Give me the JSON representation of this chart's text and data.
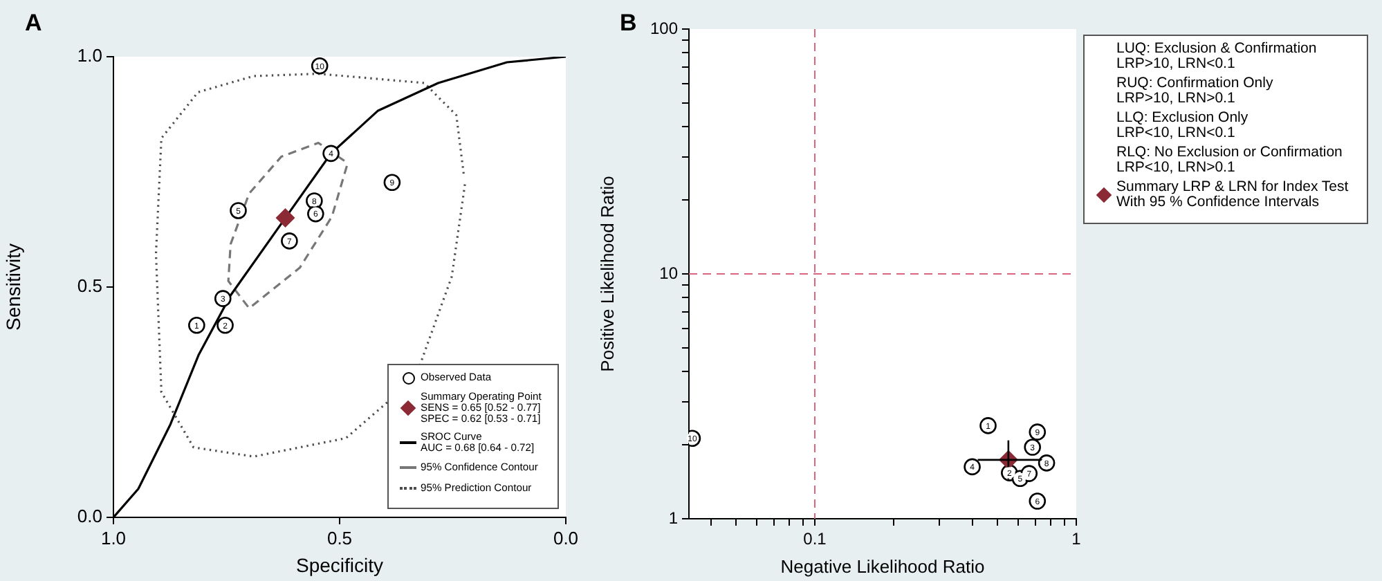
{
  "chart_data": [
    {
      "type": "scatter",
      "title": "A",
      "xlabel": "Specificity",
      "ylabel": "Sensitivity",
      "xlim": [
        1,
        0
      ],
      "ylim": [
        0,
        1
      ],
      "xticks": [
        {
          "value": 1,
          "label": "1.0"
        },
        {
          "value": 0.5,
          "label": "0.5"
        },
        {
          "value": 0,
          "label": "0.0"
        }
      ],
      "yticks": [
        {
          "value": 0,
          "label": "0.0"
        },
        {
          "value": 0.5,
          "label": "0.5"
        },
        {
          "value": 1,
          "label": "1.0"
        }
      ],
      "grid": false,
      "legend": "bottom right",
      "annotations": [
        {
          "text": "10",
          "x": 0.544,
          "y": 0.98
        },
        {
          "text": "4",
          "x": 0.519,
          "y": 0.79
        },
        {
          "text": "9",
          "x": 0.384,
          "y": 0.727
        },
        {
          "text": "5",
          "x": 0.724,
          "y": 0.666
        },
        {
          "text": "8",
          "x": 0.556,
          "y": 0.687
        },
        {
          "text": "6",
          "x": 0.553,
          "y": 0.659
        },
        {
          "text": "7",
          "x": 0.611,
          "y": 0.6
        },
        {
          "text": "3",
          "x": 0.758,
          "y": 0.475
        },
        {
          "text": "1",
          "x": 0.816,
          "y": 0.417
        },
        {
          "text": "2",
          "x": 0.753,
          "y": 0.417
        }
      ],
      "series": [
        {
          "name": "Observed Data",
          "type": "scatter",
          "marker": "circle",
          "color": "#000000",
          "x": [
            0.544,
            0.519,
            0.384,
            0.724,
            0.556,
            0.553,
            0.611,
            0.758,
            0.816,
            0.753
          ],
          "values": [
            0.98,
            0.79,
            0.727,
            0.666,
            0.687,
            0.659,
            0.6,
            0.475,
            0.417,
            0.417
          ]
        },
        {
          "name": "Summary Operating Point\nSENS = 0.65 [0.52 - 0.77]\nSPEC = 0.62 [0.53 - 0.71]",
          "type": "scatter",
          "marker": "diamond",
          "color": "#8b2a35",
          "x": [
            0.62
          ],
          "values": [
            0.65
          ]
        },
        {
          "name": "SROC Curve\nAUC = 0.68 [0.64 - 0.72]",
          "type": "line",
          "marker": "none",
          "line_style": "solid",
          "color": "#000000",
          "x": [
            1,
            0.945,
            0.874,
            0.812,
            0.741,
            0.62,
            0.519,
            0.415,
            0.282,
            0.13,
            0
          ],
          "values": [
            0,
            0.062,
            0.202,
            0.352,
            0.482,
            0.65,
            0.79,
            0.883,
            0.943,
            0.988,
            1
          ]
        },
        {
          "name": "95% Confidence Contour",
          "type": "line",
          "marker": "none",
          "line_style": "dashed",
          "color": "#777777",
          "x": [
            0.484,
            0.517,
            0.588,
            0.7,
            0.746,
            0.741,
            0.7,
            0.629,
            0.547,
            0.488
          ],
          "values": [
            0.763,
            0.653,
            0.542,
            0.454,
            0.513,
            0.593,
            0.703,
            0.783,
            0.813,
            0.773
          ]
        },
        {
          "name": "95% Prediction Contour",
          "type": "line",
          "marker": "none",
          "line_style": "dotted",
          "color": "#4d4d4d",
          "x": [
            0.223,
            0.252,
            0.333,
            0.486,
            0.69,
            0.823,
            0.894,
            0.906,
            0.894,
            0.813,
            0.69,
            0.547,
            0.313,
            0.242,
            0.225
          ],
          "values": [
            0.723,
            0.523,
            0.302,
            0.172,
            0.132,
            0.152,
            0.272,
            0.572,
            0.823,
            0.923,
            0.958,
            0.963,
            0.943,
            0.873,
            0.74
          ]
        }
      ]
    },
    {
      "type": "scatter",
      "title": "B",
      "xlabel": "Negative Likelihood Ratio",
      "ylabel": "Positive Likelihood Ratio",
      "log": "xy",
      "xlim": [
        0.033,
        1
      ],
      "ylim": [
        1,
        100
      ],
      "xticks": [
        {
          "value": 0.04,
          "label": null
        },
        {
          "value": 0.05,
          "label": null
        },
        {
          "value": 0.06,
          "label": null
        },
        {
          "value": 0.07,
          "label": null
        },
        {
          "value": 0.08,
          "label": null
        },
        {
          "value": 0.09,
          "label": null
        },
        0.1,
        {
          "value": 0.2,
          "label": null
        },
        {
          "value": 0.3,
          "label": null
        },
        {
          "value": 0.4,
          "label": null
        },
        {
          "value": 0.5,
          "label": null
        },
        {
          "value": 0.6,
          "label": null
        },
        {
          "value": 0.7,
          "label": null
        },
        {
          "value": 0.8,
          "label": null
        },
        {
          "value": 0.9,
          "label": null
        },
        1
      ],
      "yticks": [
        1,
        {
          "value": 2,
          "label": null
        },
        {
          "value": 3,
          "label": null
        },
        {
          "value": 4,
          "label": null
        },
        {
          "value": 5,
          "label": null
        },
        {
          "value": 6,
          "label": null
        },
        {
          "value": 7,
          "label": null
        },
        {
          "value": 8,
          "label": null
        },
        {
          "value": 9,
          "label": null
        },
        10,
        {
          "value": 20,
          "label": null
        },
        {
          "value": 30,
          "label": null
        },
        {
          "value": 40,
          "label": null
        },
        {
          "value": 50,
          "label": null
        },
        {
          "value": 60,
          "label": null
        },
        {
          "value": 70,
          "label": null
        },
        {
          "value": 80,
          "label": null
        },
        {
          "value": 90,
          "label": null
        },
        100
      ],
      "grid": false,
      "legend": "right",
      "ref_lines": [
        {
          "axis": "x",
          "value": 0.1,
          "color": "#d9667f",
          "line_style": "dashed"
        },
        {
          "axis": "y",
          "value": 10,
          "color": "#d9667f",
          "line_style": "dashed"
        }
      ],
      "annotations": [
        "LUQ: Exclusion & Confirmation\nLRP>10, LRN<0.1",
        "RUQ: Confirmation Only\nLRP>10, LRN>0.1",
        "LLQ: Exclusion Only\nLRP<10, LRN<0.1",
        "RLQ: No Exclusion or Confirmation\nLRP<10, LRN>0.1",
        {
          "text": "10",
          "x": 0.034,
          "y": 2.13
        },
        {
          "text": "1",
          "x": 0.46,
          "y": 2.4
        },
        {
          "text": "9",
          "x": 0.71,
          "y": 2.26
        },
        {
          "text": "3",
          "x": 0.68,
          "y": 1.96
        },
        {
          "text": "8",
          "x": 0.77,
          "y": 1.69
        },
        {
          "text": "4",
          "x": 0.4,
          "y": 1.63
        },
        {
          "text": "2",
          "x": 0.555,
          "y": 1.54
        },
        {
          "text": "5",
          "x": 0.61,
          "y": 1.46
        },
        {
          "text": "7",
          "x": 0.66,
          "y": 1.53
        },
        {
          "text": "6",
          "x": 0.71,
          "y": 1.18
        }
      ],
      "series": [
        {
          "type": "scatter",
          "marker": "circle",
          "color": "#000000",
          "x": [
            0.034,
            0.46,
            0.71,
            0.68,
            0.77,
            0.4,
            0.555,
            0.61,
            0.66,
            0.71
          ],
          "values": [
            2.13,
            2.4,
            2.26,
            1.96,
            1.69,
            1.63,
            1.54,
            1.46,
            1.53,
            1.18
          ]
        },
        {
          "name": "Summary LRP & LRN for Index Test\nWith 95 % Confidence Intervals",
          "type": "scatter",
          "marker": "diamond",
          "color": "#8b2a35",
          "x": [
            0.55
          ],
          "values": [
            1.74
          ],
          "errors": [
            [
              1.45,
              2.09
            ]
          ],
          "xerrors": [
            [
              0.42,
              0.77
            ]
          ]
        }
      ]
    }
  ]
}
